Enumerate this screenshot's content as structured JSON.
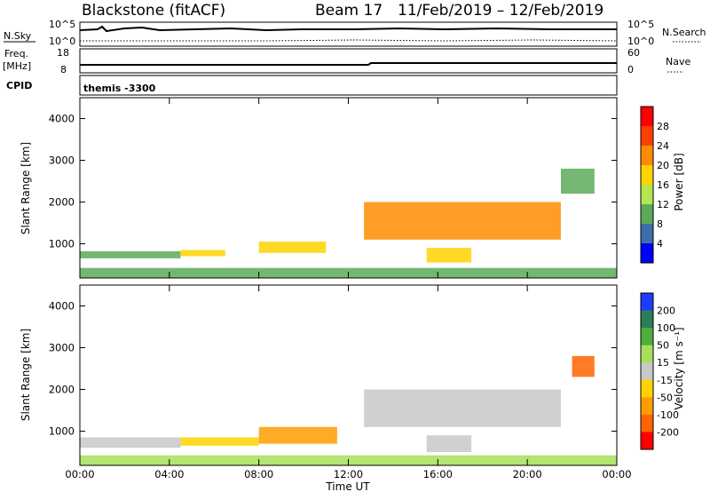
{
  "header": {
    "station": "Blackstone (fitACF)",
    "beam": "Beam 17",
    "date_range": "11/Feb/2019 – 12/Feb/2019"
  },
  "summary_panels": {
    "nsky_label": "N.Sky",
    "nsky_ticks": [
      "10^5",
      "10^0"
    ],
    "nsearch_label": "N.Search",
    "nsearch_ticks": [
      "10^5",
      "10^0"
    ],
    "freq_label_line1": "Freq.",
    "freq_label_line2": "[MHz]",
    "freq_ticks": [
      "18",
      "8"
    ],
    "nave_label": "Nave",
    "nave_ticks": [
      "60",
      "0"
    ],
    "cpid_label": "CPID",
    "cpid_value": "themis -3300"
  },
  "colorbars": {
    "power": {
      "label": "Power [dB]",
      "ticks": [
        "28",
        "24",
        "20",
        "16",
        "12",
        "8",
        "4"
      ],
      "colors": [
        "#ff0000",
        "#ff4000",
        "#ff8c00",
        "#ffd200",
        "#b4e650",
        "#5aaa5a",
        "#3c6eaa",
        "#0000ff"
      ]
    },
    "velocity": {
      "label": "Velocity [m s⁻¹]",
      "ticks": [
        "200",
        "100",
        "50",
        "15",
        "-15",
        "-50",
        "-100",
        "-200"
      ],
      "colors": [
        "#1e3cff",
        "#2e7d5a",
        "#4fae3c",
        "#a6e05a",
        "#c8c8c8",
        "#ffd200",
        "#ff9c00",
        "#ff6400",
        "#ff0000"
      ]
    }
  },
  "axes": {
    "ylabel": "Slant Range [km]",
    "y_ticks": [
      "4000",
      "3000",
      "2000",
      "1000"
    ],
    "xlabel": "Time UT",
    "x_ticks": [
      "00:00",
      "04:00",
      "08:00",
      "12:00",
      "16:00",
      "20:00",
      "00:00"
    ]
  },
  "chart_data": [
    {
      "type": "heatmap",
      "title": "Power",
      "xlabel": "Time UT",
      "ylabel": "Slant Range [km]",
      "xlim_hours": [
        0,
        24
      ],
      "ylim_km": [
        180,
        4500
      ],
      "color_quantity": "Power [dB]",
      "color_range": [
        0,
        30
      ],
      "regions": [
        {
          "t_start": 0.0,
          "t_end": 4.5,
          "range_low": 650,
          "range_high": 820,
          "value_db": 9
        },
        {
          "t_start": 4.5,
          "t_end": 6.5,
          "range_low": 700,
          "range_high": 850,
          "value_db": 18
        },
        {
          "t_start": 8.0,
          "t_end": 11.0,
          "range_low": 780,
          "range_high": 1050,
          "value_db": 16
        },
        {
          "t_start": 12.7,
          "t_end": 21.5,
          "range_low": 1100,
          "range_high": 2000,
          "value_db": 20
        },
        {
          "t_start": 15.5,
          "t_end": 17.5,
          "range_low": 550,
          "range_high": 900,
          "value_db": 17
        },
        {
          "t_start": 21.5,
          "t_end": 23.0,
          "range_low": 2200,
          "range_high": 2800,
          "value_db": 10
        },
        {
          "t_start": 0.0,
          "t_end": 24.0,
          "range_low": 180,
          "range_high": 420,
          "value_db": 10
        }
      ]
    },
    {
      "type": "heatmap",
      "title": "Velocity",
      "xlabel": "Time UT",
      "ylabel": "Slant Range [km]",
      "xlim_hours": [
        0,
        24
      ],
      "ylim_km": [
        180,
        4500
      ],
      "color_quantity": "Velocity [m s⁻¹]",
      "color_range": [
        -200,
        200
      ],
      "regions": [
        {
          "t_start": 0.0,
          "t_end": 4.5,
          "range_low": 600,
          "range_high": 850,
          "value_ms": -10
        },
        {
          "t_start": 4.5,
          "t_end": 8.0,
          "range_low": 650,
          "range_high": 850,
          "value_ms": -40
        },
        {
          "t_start": 8.0,
          "t_end": 11.5,
          "range_low": 700,
          "range_high": 1100,
          "value_ms": -60
        },
        {
          "t_start": 12.7,
          "t_end": 21.5,
          "range_low": 1100,
          "range_high": 2000,
          "value_ms": 0
        },
        {
          "t_start": 15.5,
          "t_end": 17.5,
          "range_low": 500,
          "range_high": 900,
          "value_ms": 0
        },
        {
          "t_start": 22.0,
          "t_end": 23.0,
          "range_low": 2300,
          "range_high": 2800,
          "value_ms": -120
        },
        {
          "t_start": 0.0,
          "t_end": 24.0,
          "range_low": 180,
          "range_high": 420,
          "value_ms": 20
        }
      ]
    }
  ]
}
